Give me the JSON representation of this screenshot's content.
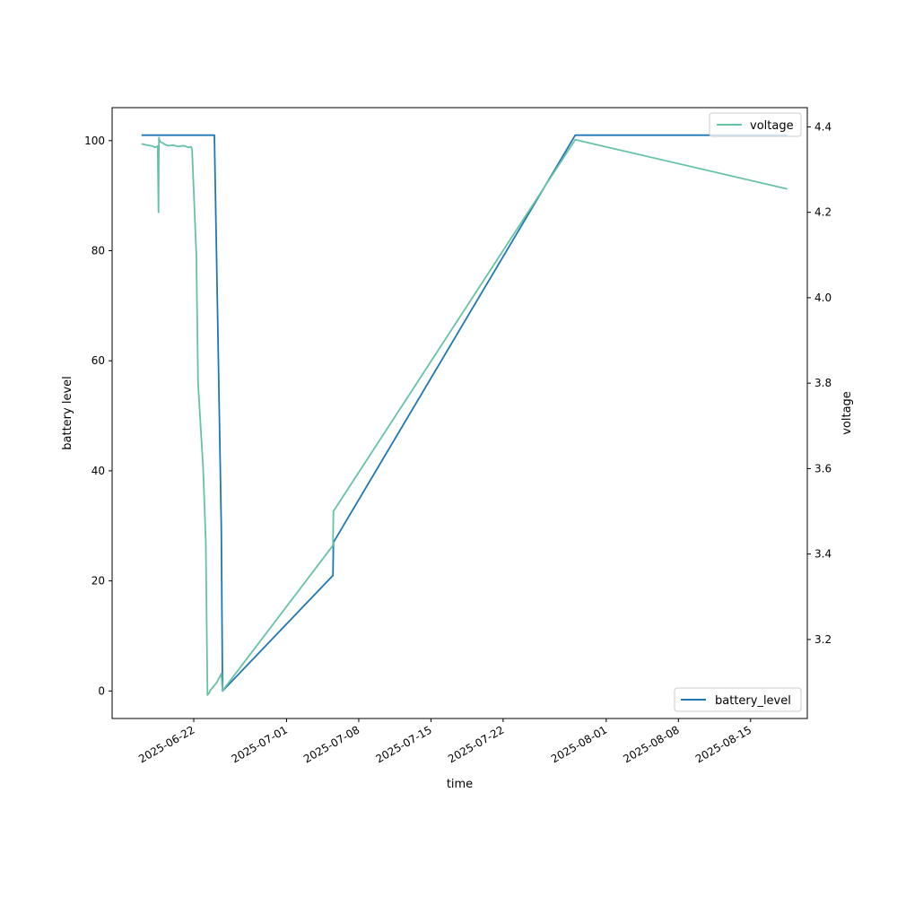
{
  "chart_data": {
    "type": "line",
    "xlabel": "time",
    "ylabel_left": "battery level",
    "ylabel_right": "voltage",
    "xlim": [
      "2025-06-14T02:00",
      "2025-08-20T12:00"
    ],
    "ylim_left": [
      -5,
      106
    ],
    "ylim_right": [
      3.015,
      4.445
    ],
    "x_ticks": [
      "2025-06-22",
      "2025-07-01",
      "2025-07-08",
      "2025-07-15",
      "2025-07-22",
      "2025-08-01",
      "2025-08-08",
      "2025-08-15"
    ],
    "y_ticks_left": [
      0,
      20,
      40,
      60,
      80,
      100
    ],
    "y_ticks_right": [
      3.2,
      3.4,
      3.6,
      3.8,
      4.0,
      4.2,
      4.4
    ],
    "grid": false,
    "series": [
      {
        "name": "battery_level",
        "axis": "left",
        "color": "#1f77b4",
        "legend_position": "lower right",
        "x": [
          "2025-06-17T00:00",
          "2025-06-21T18:00",
          "2025-06-21T20:00",
          "2025-06-22T06:00",
          "2025-06-22T09:00",
          "2025-06-24T00:00",
          "2025-06-24T07:00",
          "2025-06-24T16:00",
          "2025-06-24T19:00",
          "2025-07-05T12:00",
          "2025-07-05T13:00",
          "2025-07-29T00:00",
          "2025-08-18T12:00"
        ],
        "y": [
          101,
          101,
          101,
          101,
          101,
          101,
          70,
          30,
          0,
          21,
          27,
          101,
          101
        ]
      },
      {
        "name": "voltage",
        "axis": "right",
        "color": "#66c2a5",
        "legend_position": "upper right",
        "x": [
          "2025-06-17T00:00",
          "2025-06-17T12:00",
          "2025-06-18T00:00",
          "2025-06-18T06:00",
          "2025-06-18T12:00",
          "2025-06-18T14:00",
          "2025-06-18T15:00",
          "2025-06-18T16:00",
          "2025-06-18T18:00",
          "2025-06-19T00:00",
          "2025-06-19T06:00",
          "2025-06-19T12:00",
          "2025-06-20T00:00",
          "2025-06-20T12:00",
          "2025-06-21T00:00",
          "2025-06-21T12:00",
          "2025-06-21T18:00",
          "2025-06-21T20:00",
          "2025-06-22T06:00",
          "2025-06-22T10:00",
          "2025-06-22T22:00",
          "2025-06-23T04:00",
          "2025-06-23T08:00",
          "2025-06-23T12:00",
          "2025-06-23T14:00",
          "2025-06-23T22:00",
          "2025-06-24T06:00",
          "2025-06-24T16:00",
          "2025-06-24T19:00",
          "2025-07-05T12:00",
          "2025-07-05T13:00",
          "2025-07-29T00:00",
          "2025-08-18T12:00"
        ],
        "y": [
          4.36,
          4.357,
          4.355,
          4.352,
          4.355,
          4.2,
          4.375,
          4.37,
          4.365,
          4.362,
          4.358,
          4.356,
          4.357,
          4.354,
          4.356,
          4.352,
          4.353,
          4.348,
          4.1,
          3.8,
          3.6,
          3.43,
          3.07,
          3.075,
          3.08,
          3.09,
          3.1,
          3.12,
          3.08,
          3.42,
          3.5,
          4.37,
          4.255
        ]
      }
    ]
  }
}
